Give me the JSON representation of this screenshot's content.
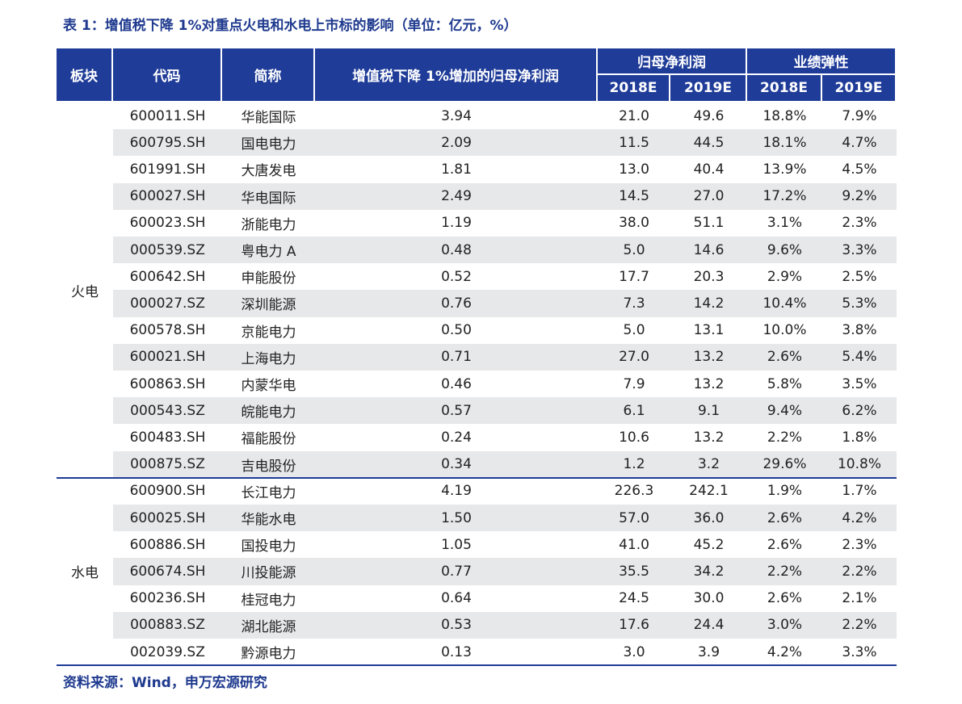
{
  "title": "表 1：增值税下降 1%对重点火电和水电上市标的影响（单位：亿元，%）",
  "table": {
    "headers": {
      "sector": "板块",
      "code": "代码",
      "name": "简称",
      "impact": "增值税下降 1%增加的归母净利润",
      "profit": "归母净利润",
      "elasticity": "业绩弹性",
      "years": [
        "2018E",
        "2019E",
        "2018E",
        "2019E"
      ]
    },
    "groups": [
      {
        "sector": "火电",
        "rows": [
          [
            "600011.SH",
            "华能国际",
            "3.94",
            "21.0",
            "49.6",
            "18.8%",
            "7.9%"
          ],
          [
            "600795.SH",
            "国电电力",
            "2.09",
            "11.5",
            "44.5",
            "18.1%",
            "4.7%"
          ],
          [
            "601991.SH",
            "大唐发电",
            "1.81",
            "13.0",
            "40.4",
            "13.9%",
            "4.5%"
          ],
          [
            "600027.SH",
            "华电国际",
            "2.49",
            "14.5",
            "27.0",
            "17.2%",
            "9.2%"
          ],
          [
            "600023.SH",
            "浙能电力",
            "1.19",
            "38.0",
            "51.1",
            "3.1%",
            "2.3%"
          ],
          [
            "000539.SZ",
            "粤电力 A",
            "0.48",
            "5.0",
            "14.6",
            "9.6%",
            "3.3%"
          ],
          [
            "600642.SH",
            "申能股份",
            "0.52",
            "17.7",
            "20.3",
            "2.9%",
            "2.5%"
          ],
          [
            "000027.SZ",
            "深圳能源",
            "0.76",
            "7.3",
            "14.2",
            "10.4%",
            "5.3%"
          ],
          [
            "600578.SH",
            "京能电力",
            "0.50",
            "5.0",
            "13.1",
            "10.0%",
            "3.8%"
          ],
          [
            "600021.SH",
            "上海电力",
            "0.71",
            "27.0",
            "13.2",
            "2.6%",
            "5.4%"
          ],
          [
            "600863.SH",
            "内蒙华电",
            "0.46",
            "7.9",
            "13.2",
            "5.8%",
            "3.5%"
          ],
          [
            "000543.SZ",
            "皖能电力",
            "0.57",
            "6.1",
            "9.1",
            "9.4%",
            "6.2%"
          ],
          [
            "600483.SH",
            "福能股份",
            "0.24",
            "10.6",
            "13.2",
            "2.2%",
            "1.8%"
          ],
          [
            "000875.SZ",
            "吉电股份",
            "0.34",
            "1.2",
            "3.2",
            "29.6%",
            "10.8%"
          ]
        ]
      },
      {
        "sector": "水电",
        "rows": [
          [
            "600900.SH",
            "长江电力",
            "4.19",
            "226.3",
            "242.1",
            "1.9%",
            "1.7%"
          ],
          [
            "600025.SH",
            "华能水电",
            "1.50",
            "57.0",
            "36.0",
            "2.6%",
            "4.2%"
          ],
          [
            "600886.SH",
            "国投电力",
            "1.05",
            "41.0",
            "45.2",
            "2.6%",
            "2.3%"
          ],
          [
            "600674.SH",
            "川投能源",
            "0.77",
            "35.5",
            "34.2",
            "2.2%",
            "2.2%"
          ],
          [
            "600236.SH",
            "桂冠电力",
            "0.64",
            "24.5",
            "30.0",
            "2.6%",
            "2.1%"
          ],
          [
            "000883.SZ",
            "湖北能源",
            "0.53",
            "17.6",
            "24.4",
            "3.0%",
            "2.2%"
          ],
          [
            "002039.SZ",
            "黔源电力",
            "0.13",
            "3.0",
            "3.9",
            "4.2%",
            "3.3%"
          ]
        ]
      }
    ]
  },
  "source": "资料来源：Wind，申万宏源研究"
}
